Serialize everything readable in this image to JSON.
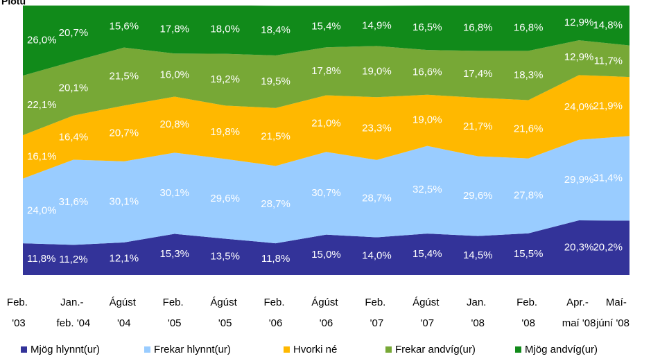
{
  "chart_data": {
    "type": "stacked_area",
    "title": "Plotu",
    "categories": [
      "Feb. '03",
      "Jan.- feb. '04",
      "Ágúst '04",
      "Feb. '05",
      "Ágúst '05",
      "Feb. '06",
      "Ágúst '06",
      "Feb. '07",
      "Ágúst '07",
      "Jan. '08",
      "Feb. '08",
      "Apr.- maí '08",
      "Maí- júní '08"
    ],
    "ylim": [
      0,
      100
    ],
    "series": [
      {
        "name": "Mjög hlynnt(ur)",
        "color": "#333399",
        "values": [
          11.8,
          11.2,
          12.1,
          15.3,
          13.5,
          11.8,
          15.0,
          14.0,
          15.4,
          14.5,
          15.5,
          20.3,
          20.2
        ],
        "value_labels": [
          "11,8%",
          "11,2%",
          "12,1%",
          "15,3%",
          "13,5%",
          "11,8%",
          "15,0%",
          "14,0%",
          "15,4%",
          "14,5%",
          "15,5%",
          "20,3%",
          "20,2%"
        ]
      },
      {
        "name": "Frekar hlynnt(ur)",
        "color": "#99ccff",
        "values": [
          24.0,
          31.6,
          30.1,
          30.1,
          29.6,
          28.7,
          30.7,
          28.7,
          32.5,
          29.6,
          27.8,
          29.9,
          31.4
        ],
        "value_labels": [
          "24,0%",
          "31,6%",
          "30,1%",
          "30,1%",
          "29,6%",
          "28,7%",
          "30,7%",
          "28,7%",
          "32,5%",
          "29,6%",
          "27,8%",
          "29,9%",
          "31,4%"
        ]
      },
      {
        "name": "Hvorki né",
        "color": "#ffb800",
        "values": [
          16.1,
          16.4,
          20.7,
          20.8,
          19.8,
          21.5,
          21.0,
          23.3,
          19.0,
          21.7,
          21.6,
          24.0,
          21.9
        ],
        "value_labels": [
          "16,1%",
          "16,4%",
          "20,7%",
          "20,8%",
          "19,8%",
          "21,5%",
          "21,0%",
          "23,3%",
          "19,0%",
          "21,7%",
          "21,6%",
          "24,0%",
          "21,9%"
        ]
      },
      {
        "name": "Frekar andvíg(ur)",
        "color": "#77a836",
        "values": [
          22.1,
          20.1,
          21.5,
          16.0,
          19.2,
          19.5,
          17.8,
          19.0,
          16.6,
          17.4,
          18.3,
          12.9,
          11.7
        ],
        "value_labels": [
          "22,1%",
          "20,1%",
          "21,5%",
          "16,0%",
          "19,2%",
          "19,5%",
          "17,8%",
          "19,0%",
          "16,6%",
          "17,4%",
          "18,3%",
          "12,9%",
          "11,7%"
        ]
      },
      {
        "name": "Mjög andvíg(ur)",
        "color": "#118a1a",
        "values": [
          26.0,
          20.7,
          15.6,
          17.8,
          18.0,
          18.4,
          15.4,
          14.9,
          16.5,
          16.8,
          16.8,
          12.9,
          14.8
        ],
        "value_labels": [
          "26,0%",
          "20,7%",
          "15,6%",
          "17,8%",
          "18,0%",
          "18,4%",
          "15,4%",
          "14,9%",
          "16,5%",
          "16,8%",
          "16,8%",
          "12,9%",
          "14,8%"
        ]
      }
    ]
  }
}
